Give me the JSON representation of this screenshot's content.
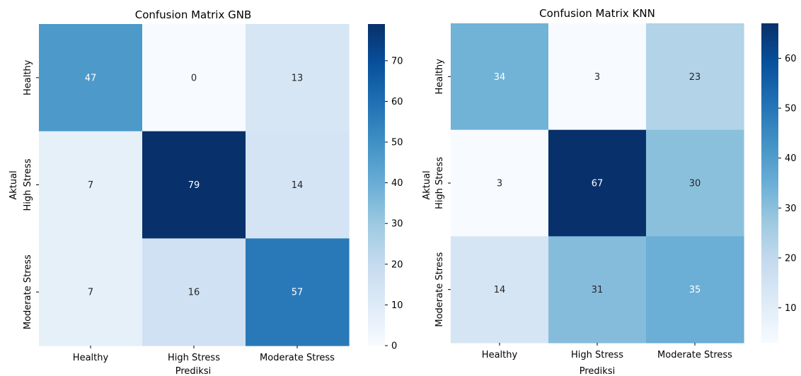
{
  "chart_data": [
    {
      "type": "heatmap",
      "title": "Confusion Matrix GNB",
      "xlabel": "Prediksi",
      "ylabel": "Aktual",
      "x_categories": [
        "Healthy",
        "High Stress",
        "Moderate Stress"
      ],
      "y_categories": [
        "Healthy",
        "High Stress",
        "Moderate Stress"
      ],
      "values": [
        [
          47,
          0,
          13
        ],
        [
          7,
          79,
          14
        ],
        [
          7,
          16,
          57
        ]
      ],
      "colorbar": {
        "min": 0,
        "max": 79,
        "ticks": [
          0,
          10,
          20,
          30,
          40,
          50,
          60,
          70
        ]
      },
      "colormap": "Blues"
    },
    {
      "type": "heatmap",
      "title": "Confusion Matrix KNN",
      "xlabel": "Prediksi",
      "ylabel": "Aktual",
      "x_categories": [
        "Healthy",
        "High Stress",
        "Moderate Stress"
      ],
      "y_categories": [
        "Healthy",
        "High Stress",
        "Moderate Stress"
      ],
      "values": [
        [
          34,
          3,
          23
        ],
        [
          3,
          67,
          30
        ],
        [
          14,
          31,
          35
        ]
      ],
      "colorbar": {
        "min": 3,
        "max": 67,
        "ticks": [
          10,
          20,
          30,
          40,
          50,
          60
        ]
      },
      "colormap": "Blues"
    }
  ]
}
